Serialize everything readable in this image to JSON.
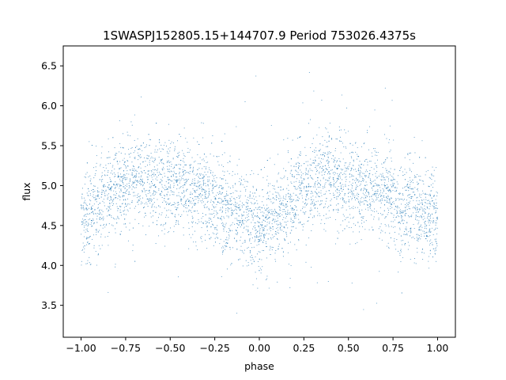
{
  "chart_data": {
    "type": "scatter",
    "title": "1SWASPJ152805.15+144707.9 Period 753026.4375s",
    "xlabel": "phase",
    "ylabel": "flux",
    "xlim": [
      -1.1,
      1.1
    ],
    "ylim": [
      3.1,
      6.75
    ],
    "xticks": [
      -1.0,
      -0.75,
      -0.5,
      -0.25,
      0.0,
      0.25,
      0.5,
      0.75,
      1.0
    ],
    "xtick_labels": [
      "−1.00",
      "−0.75",
      "−0.50",
      "−0.25",
      "0.00",
      "0.25",
      "0.50",
      "0.75",
      "1.00"
    ],
    "yticks": [
      3.5,
      4.0,
      4.5,
      5.0,
      5.5,
      6.0,
      6.5
    ],
    "ytick_labels": [
      "3.5",
      "4.0",
      "4.5",
      "5.0",
      "5.5",
      "6.0",
      "6.5"
    ],
    "grid": false,
    "legend": "none",
    "marker_color": "#1f77b4",
    "series": [
      {
        "description": "phase-folded light curve, mirrored over phase -1..1 (density profile)",
        "x": [
          -1.0,
          -0.9,
          -0.8,
          -0.7,
          -0.6,
          -0.5,
          -0.4,
          -0.3,
          -0.2,
          -0.1,
          0.0,
          0.1,
          0.2,
          0.3,
          0.4,
          0.5,
          0.6,
          0.7,
          0.8,
          0.9,
          1.0
        ],
        "y": [
          4.55,
          4.75,
          4.95,
          5.1,
          5.08,
          5.0,
          4.95,
          4.88,
          4.72,
          4.6,
          4.5,
          4.6,
          4.85,
          5.05,
          5.1,
          5.05,
          4.98,
          4.9,
          4.75,
          4.65,
          4.55
        ],
        "y_min": 3.25,
        "y_max": 6.6,
        "scatter_sd": 0.28
      }
    ]
  }
}
